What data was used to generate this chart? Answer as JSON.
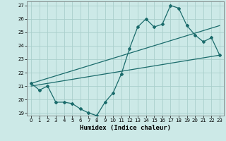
{
  "xlabel": "Humidex (Indice chaleur)",
  "xlim": [
    -0.5,
    23.5
  ],
  "ylim": [
    18.8,
    27.3
  ],
  "yticks": [
    19,
    20,
    21,
    22,
    23,
    24,
    25,
    26,
    27
  ],
  "xticks": [
    0,
    1,
    2,
    3,
    4,
    5,
    6,
    7,
    8,
    9,
    10,
    11,
    12,
    13,
    14,
    15,
    16,
    17,
    18,
    19,
    20,
    21,
    22,
    23
  ],
  "bg_color": "#cce9e7",
  "grid_color": "#aacfcc",
  "line_color": "#1a6b6b",
  "series1_x": [
    0,
    1,
    2,
    3,
    4,
    5,
    6,
    7,
    8,
    9,
    10,
    11,
    12,
    13,
    14,
    15,
    16,
    17,
    18,
    19,
    20,
    21,
    22,
    23
  ],
  "series1_y": [
    21.2,
    20.7,
    21.0,
    19.8,
    19.8,
    19.7,
    19.3,
    19.0,
    18.8,
    19.8,
    20.5,
    21.9,
    23.8,
    25.4,
    26.0,
    25.4,
    25.6,
    27.0,
    26.8,
    25.5,
    24.8,
    24.3,
    24.6,
    23.3
  ],
  "series2_x": [
    0,
    23
  ],
  "series2_y": [
    21.0,
    23.3
  ],
  "series3_x": [
    0,
    23
  ],
  "series3_y": [
    21.2,
    25.5
  ]
}
